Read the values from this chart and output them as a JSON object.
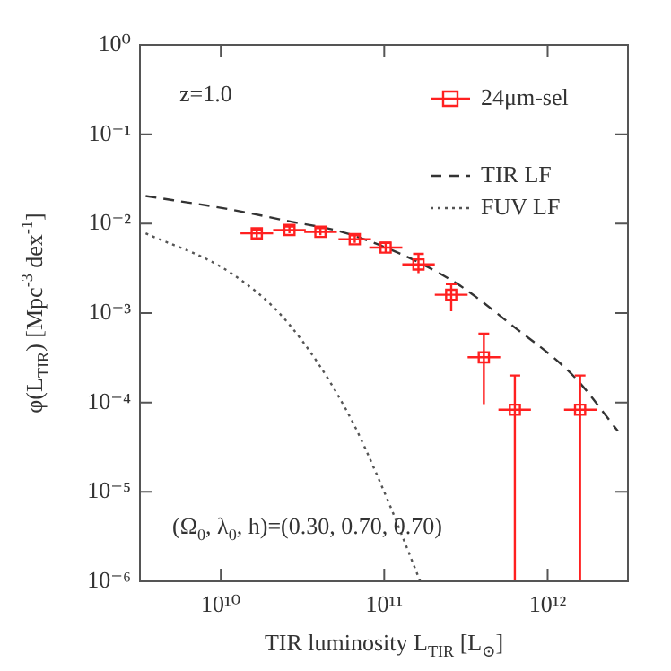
{
  "chart_data": {
    "type": "scatter",
    "xlabel": "TIR luminosity L$_{TIR}$ [L$_{⊙}$]",
    "ylabel": "φ(L$_{TIR}$) [Mpc$^{-3}$ dex$^{-1}$]",
    "annotations": [
      "z=1.0",
      "(Ω$_{0}$, λ$_{0}$, h)=(0.30, 0.70, 0.70)"
    ],
    "log": "xy",
    "grid": false,
    "legend": "top right",
    "xlim": [
      3200000000.0,
      3100000000000.0
    ],
    "ylim": [
      1e-06,
      1
    ],
    "xticks": [
      {
        "value": 10000000000.0,
        "label": "10¹⁰"
      },
      {
        "value": 100000000000.0,
        "label": "10¹¹"
      },
      {
        "value": 1000000000000.0,
        "label": "10¹²"
      }
    ],
    "yticks": [
      {
        "value": 1e-06,
        "label": "10⁻⁶"
      },
      {
        "value": 1e-05,
        "label": "10⁻⁵"
      },
      {
        "value": 0.0001,
        "label": "10⁻⁴"
      },
      {
        "value": 0.001,
        "label": "10⁻³"
      },
      {
        "value": 0.01,
        "label": "10⁻²"
      },
      {
        "value": 0.1,
        "label": "10⁻¹"
      },
      {
        "value": 1,
        "label": "10⁰"
      }
    ],
    "series": [
      {
        "name": "24μm-sel",
        "color": "#ff2020",
        "marker": "square",
        "x": [
          16600000000.0,
          26300000000.0,
          40700000000.0,
          66000000000.0,
          102000000000.0,
          162000000000.0,
          257000000000.0,
          407000000000.0,
          630000000000.0,
          1580000000000.0
        ],
        "values": [
          0.0078,
          0.0085,
          0.0081,
          0.0067,
          0.0054,
          0.0035,
          0.0016,
          0.00032,
          8.3e-05,
          8.3e-05
        ],
        "errors": [
          [
            0.007,
            0.0086
          ],
          [
            0.0078,
            0.0093
          ],
          [
            0.0074,
            0.0089
          ],
          [
            0.0061,
            0.0074
          ],
          [
            0.0048,
            0.0061
          ],
          [
            0.0028,
            0.0046
          ],
          [
            0.00105,
            0.0021
          ],
          [
            9.6e-05,
            0.00059
          ],
          [
            1e-06,
            0.0002
          ],
          [
            1e-06,
            0.0002
          ]
        ],
        "xerrors": [
          [
            13200000000.0,
            20900000000.0
          ],
          [
            20900000000.0,
            33100000000.0
          ],
          [
            32400000000.0,
            51300000000.0
          ],
          [
            52500000000.0,
            83000000000.0
          ],
          [
            81000000000.0,
            129000000000.0
          ],
          [
            129000000000.0,
            204000000000.0
          ],
          [
            204000000000.0,
            324000000000.0
          ],
          [
            324000000000.0,
            513000000000.0
          ],
          [
            500000000000.0,
            790000000000.0
          ],
          [
            1260000000000.0,
            2000000000000.0
          ]
        ]
      },
      {
        "name": "TIR LF",
        "type": "line",
        "color": "#333333",
        "line_style": "dashed",
        "marker": "none",
        "x": [
          3470000000.0,
          11200000000.0,
          25700000000.0,
          61700000000.0,
          257000000000.0,
          617000000000.0,
          1450000000000.0,
          2690000000000.0
        ],
        "values": [
          0.0204,
          0.0145,
          0.0107,
          0.0076,
          0.00234,
          0.00071,
          0.000195,
          4.8e-05
        ]
      },
      {
        "name": "FUV LF",
        "type": "line",
        "color": "#555555",
        "line_style": "dotted",
        "marker": "none",
        "x": [
          3470000000.0,
          11200000000.0,
          25700000000.0,
          60000000000.0,
          100000000000.0,
          166000000000.0
        ],
        "values": [
          0.0078,
          0.0029,
          0.00078,
          7.6e-05,
          1e-05,
          1e-06
        ]
      }
    ]
  }
}
